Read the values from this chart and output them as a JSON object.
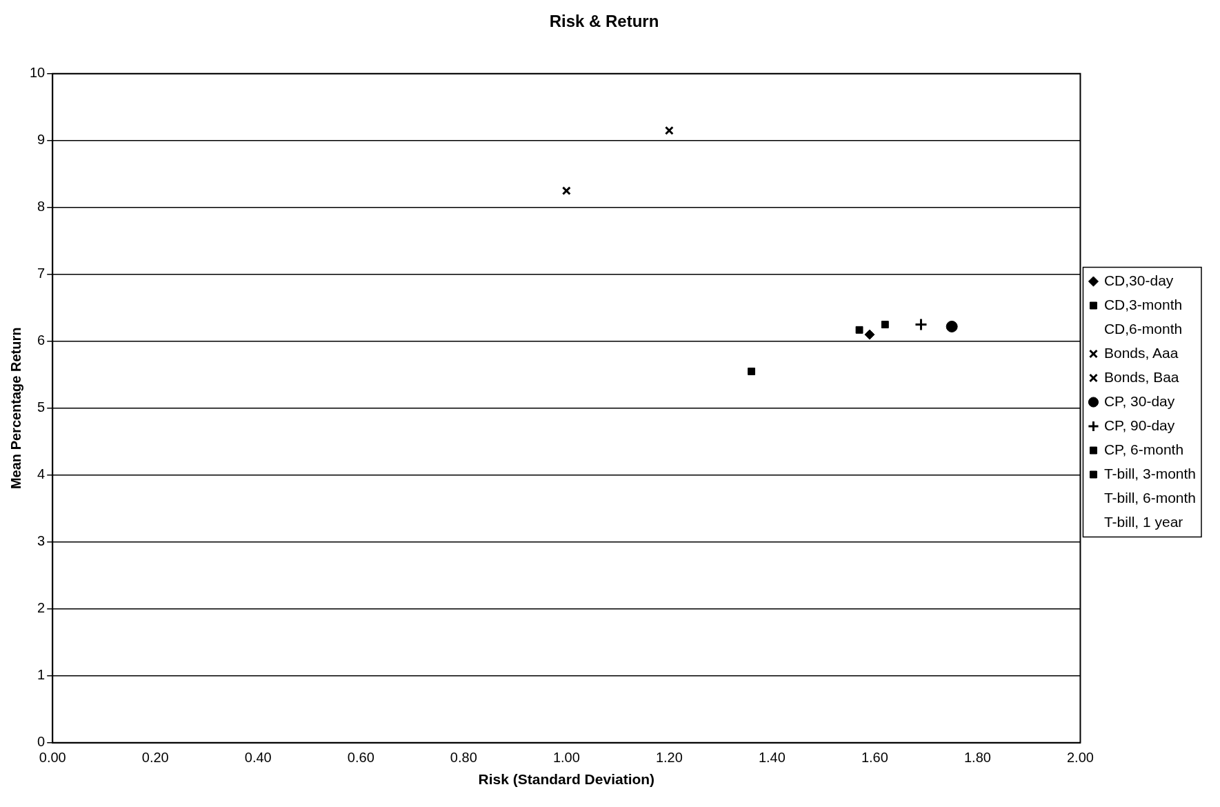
{
  "chart_data": {
    "type": "scatter",
    "title": "Risk & Return",
    "xlabel": "Risk (Standard Deviation)",
    "ylabel": "Mean Percentage Return",
    "xlim": [
      0,
      2
    ],
    "xticks": [
      {
        "value": 0,
        "label": "0.00"
      },
      {
        "value": 0.2,
        "label": "0.20"
      },
      {
        "value": 0.4,
        "label": "0.40"
      },
      {
        "value": 0.6,
        "label": "0.60"
      },
      {
        "value": 0.8,
        "label": "0.80"
      },
      {
        "value": 1,
        "label": "1.00"
      },
      {
        "value": 1.2,
        "label": "1.20"
      },
      {
        "value": 1.4,
        "label": "1.40"
      },
      {
        "value": 1.6,
        "label": "1.60"
      },
      {
        "value": 1.8,
        "label": "1.80"
      },
      {
        "value": 2,
        "label": "2.00"
      }
    ],
    "ylim": [
      0,
      10
    ],
    "yticks": [
      0,
      1,
      2,
      3,
      4,
      5,
      6,
      7,
      8,
      9,
      10
    ],
    "grid": "y",
    "legend": "right",
    "series": [
      {
        "name": "CD,30-day",
        "color": "#000000",
        "marker": "diamond",
        "x": [
          1.59
        ],
        "values": [
          6.1
        ]
      },
      {
        "name": "CD,3-month",
        "color": "#000000",
        "marker": "square",
        "x": [
          1.57
        ],
        "values": [
          6.17
        ]
      },
      {
        "name": "CD,6-month",
        "color": "#000000",
        "marker": "none",
        "x": [
          null
        ],
        "values": [
          null
        ]
      },
      {
        "name": "Bonds, Aaa",
        "color": "#000000",
        "marker": "cross",
        "x": [
          1.0
        ],
        "values": [
          8.25
        ]
      },
      {
        "name": "Bonds, Baa",
        "color": "#000000",
        "marker": "cross",
        "x": [
          1.2
        ],
        "values": [
          9.15
        ]
      },
      {
        "name": "CP, 30-day",
        "color": "#000000",
        "marker": "circle",
        "x": [
          1.75
        ],
        "values": [
          6.22
        ]
      },
      {
        "name": "CP, 90-day",
        "color": "#000000",
        "marker": "plus",
        "x": [
          1.69
        ],
        "values": [
          6.25
        ]
      },
      {
        "name": "CP, 6-month",
        "color": "#000000",
        "marker": "square",
        "x": [
          1.62
        ],
        "values": [
          6.25
        ]
      },
      {
        "name": "T-bill, 3-month",
        "color": "#000000",
        "marker": "square",
        "x": [
          1.36
        ],
        "values": [
          5.55
        ]
      },
      {
        "name": "T-bill, 6-month",
        "color": "#000000",
        "marker": "none",
        "x": [
          null
        ],
        "values": [
          null
        ]
      },
      {
        "name": "T-bill, 1 year",
        "color": "#000000",
        "marker": "none",
        "x": [
          null
        ],
        "values": [
          null
        ]
      }
    ]
  }
}
